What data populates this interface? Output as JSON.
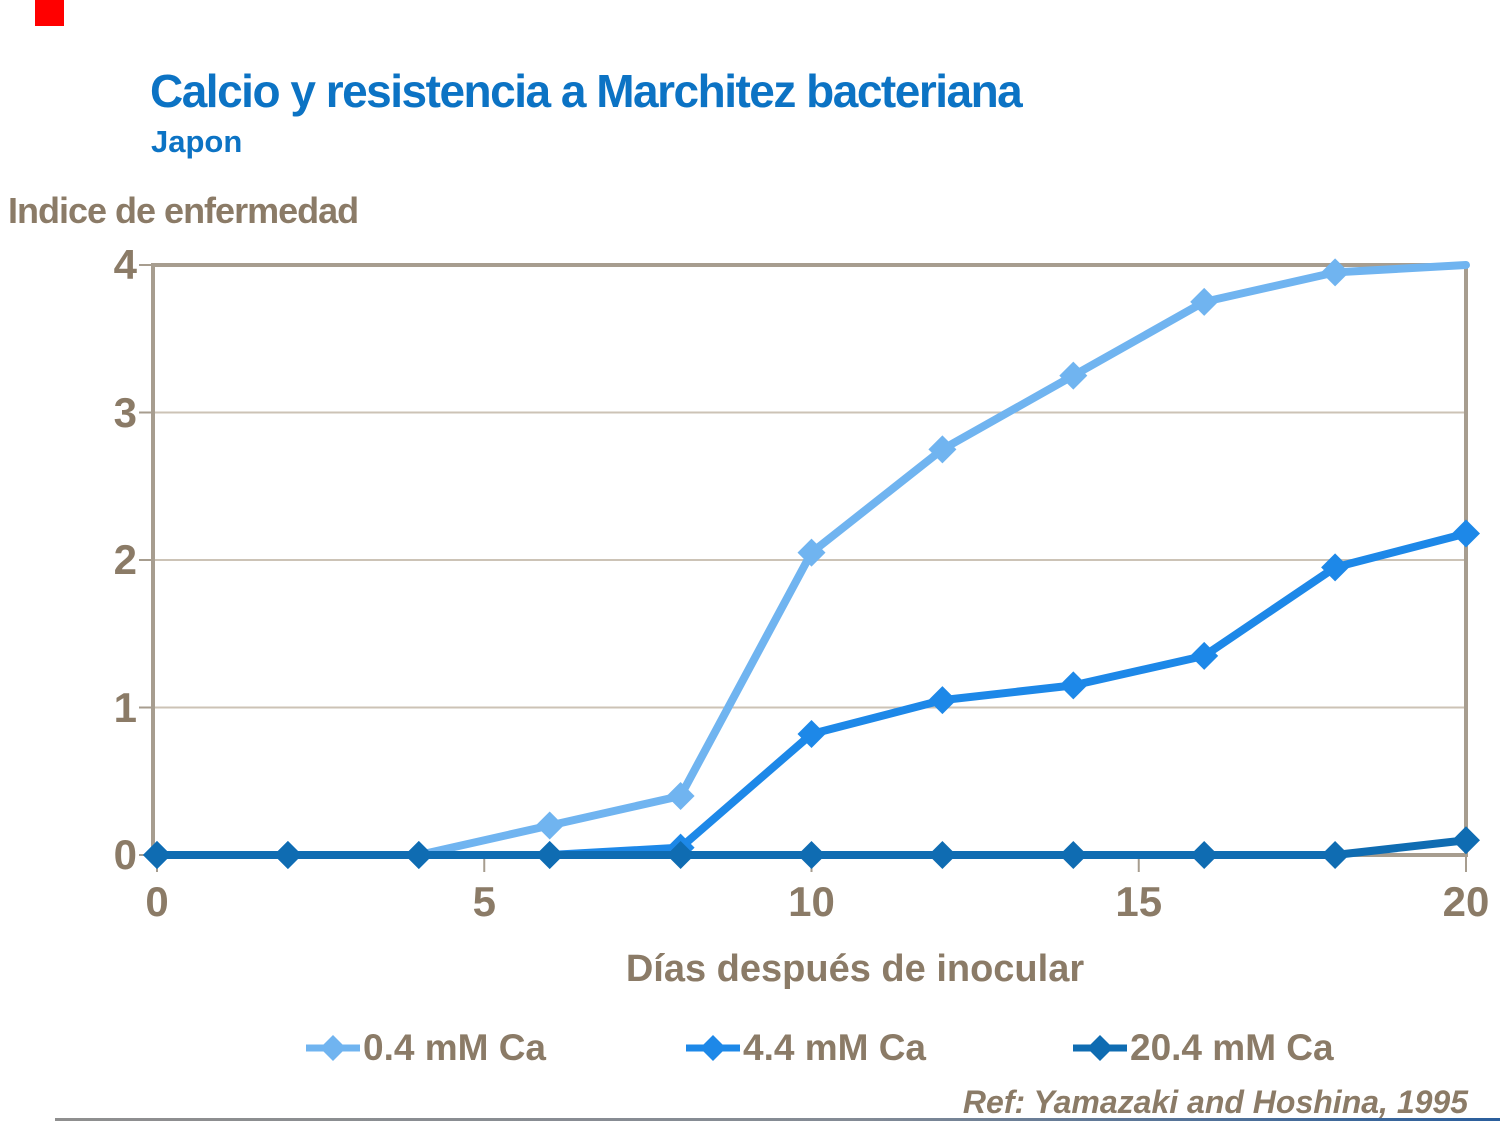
{
  "slide": {
    "title": "Calcio y resistencia a Marchitez bacteriana",
    "subtitle": "Japon",
    "ref_note": "Ref: Yamazaki and Hoshina, 1995"
  },
  "colors": {
    "title_blue": "#0c73c4",
    "axis_text_brown": "#8b7b67",
    "frame": "#a79d8f",
    "gridline": "#ccc3b6",
    "red_marker": "#ff0000",
    "series_light_blue": "#70b4f0",
    "series_medium_blue": "#1d88e8",
    "series_dark_blue": "#0f6cb2"
  },
  "chart_data": {
    "type": "line",
    "title": "Calcio y resistencia a Marchitez bacteriana",
    "subtitle": "Japon",
    "xlabel": "Días después de inocular",
    "ylabel": "Indice de enfermedad",
    "xlim": [
      0,
      20
    ],
    "ylim": [
      0,
      4
    ],
    "x_ticks": [
      0,
      5,
      10,
      15,
      20
    ],
    "y_ticks": [
      0,
      1,
      2,
      3,
      4
    ],
    "grid": true,
    "legend_position": "bottom",
    "x": [
      0,
      2,
      4,
      6,
      8,
      10,
      12,
      14,
      16,
      18,
      20
    ],
    "series": [
      {
        "name": "0.4 mM Ca",
        "color": "#70b4f0",
        "values": [
          0,
          0,
          0,
          0.2,
          0.4,
          2.05,
          2.75,
          3.25,
          3.75,
          3.95,
          4.0
        ],
        "hide_last_marker": true
      },
      {
        "name": "4.4 mM Ca",
        "color": "#1d88e8",
        "values": [
          0,
          0,
          0,
          0,
          0.05,
          0.82,
          1.05,
          1.15,
          1.35,
          1.95,
          2.18
        ],
        "hide_last_marker": false
      },
      {
        "name": "20.4 mM Ca",
        "color": "#0f6cb2",
        "values": [
          0,
          0,
          0,
          0,
          0,
          0,
          0,
          0,
          0,
          0,
          0.1
        ],
        "hide_last_marker": false
      }
    ]
  }
}
